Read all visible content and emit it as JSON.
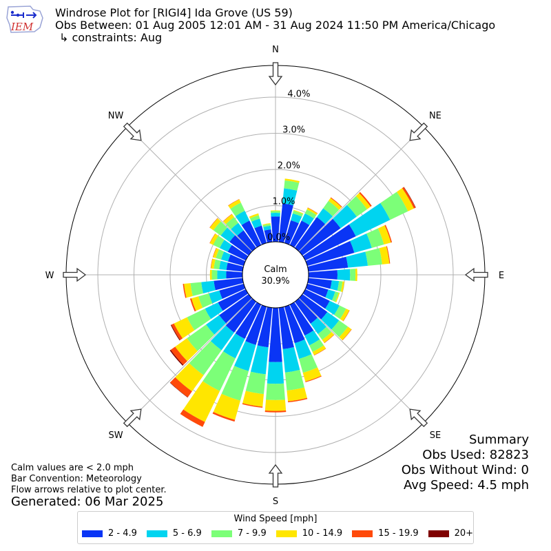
{
  "header": {
    "title": "Windrose Plot for [RIGI4] Ida Grove (US 59)",
    "period": "Obs Between: 01 Aug 2005 12:01 AM - 31 Aug 2024 11:50 PM America/Chicago",
    "constraints": "↳ constraints: Aug",
    "logo_text": "IEM"
  },
  "calm": {
    "label": "Calm",
    "value": "30.9%"
  },
  "notes": {
    "line1": "Calm values are < 2.0 mph",
    "line2": "Bar Convention: Meteorology",
    "line3": "Flow arrows relative to plot center.",
    "generated": "Generated: 06 Mar 2025"
  },
  "summary": {
    "title": "Summary",
    "obs_used": "Obs Used: 82823",
    "obs_without_wind": "Obs Without Wind: 0",
    "avg_speed": "Avg Speed: 4.5 mph"
  },
  "colors": {
    "speed_bins": [
      "#0a35f5",
      "#00d4f0",
      "#7cff78",
      "#ffe600",
      "#ff4a0a",
      "#7f0000"
    ],
    "grid": "#b0b0b0",
    "outer_ring": "#000000"
  },
  "chart_data": {
    "type": "windrose",
    "units": "mph",
    "directions": [
      "N",
      "NE",
      "E",
      "SE",
      "S",
      "SW",
      "W",
      "NW"
    ],
    "radial_ticks": [
      "0.0%",
      "1.0%",
      "2.0%",
      "3.0%",
      "4.0%"
    ],
    "rmax_percent": 5.0,
    "calm_percent": 30.9,
    "legend_title": "Wind Speed [mph]",
    "speed_bins": [
      "2 - 4.9",
      "5 - 6.9",
      "7 - 9.9",
      "10 - 14.9",
      "15 - 19.9",
      "20+"
    ],
    "sectors": [
      {
        "dir": 0,
        "values": [
          0.7,
          0.1,
          0.05,
          0.02,
          0.0,
          0.0
        ]
      },
      {
        "dir": 10,
        "values": [
          1.07,
          0.42,
          0.22,
          0.05,
          0.0,
          0.0
        ]
      },
      {
        "dir": 20,
        "values": [
          0.65,
          0.2,
          0.08,
          0.02,
          0.0,
          0.0
        ]
      },
      {
        "dir": 30,
        "values": [
          0.75,
          0.22,
          0.12,
          0.05,
          0.01,
          0.0
        ]
      },
      {
        "dir": 40,
        "values": [
          1.05,
          0.3,
          0.25,
          0.1,
          0.02,
          0.0
        ]
      },
      {
        "dir": 50,
        "values": [
          1.3,
          0.55,
          0.35,
          0.12,
          0.04,
          0.0
        ]
      },
      {
        "dir": 60,
        "values": [
          1.55,
          1.05,
          0.55,
          0.18,
          0.05,
          0.01
        ]
      },
      {
        "dir": 70,
        "values": [
          1.35,
          0.5,
          0.35,
          0.2,
          0.03,
          0.0
        ]
      },
      {
        "dir": 80,
        "values": [
          1.1,
          0.55,
          0.4,
          0.2,
          0.02,
          0.0
        ]
      },
      {
        "dir": 90,
        "values": [
          0.8,
          0.35,
          0.15,
          0.05,
          0.0,
          0.0
        ]
      },
      {
        "dir": 100,
        "values": [
          0.65,
          0.2,
          0.1,
          0.05,
          0.0,
          0.0
        ]
      },
      {
        "dir": 110,
        "values": [
          0.6,
          0.2,
          0.1,
          0.03,
          0.0,
          0.0
        ]
      },
      {
        "dir": 120,
        "values": [
          0.75,
          0.3,
          0.2,
          0.1,
          0.01,
          0.0
        ]
      },
      {
        "dir": 130,
        "values": [
          0.85,
          0.4,
          0.3,
          0.12,
          0.01,
          0.0
        ]
      },
      {
        "dir": 140,
        "values": [
          0.75,
          0.35,
          0.2,
          0.1,
          0.01,
          0.0
        ]
      },
      {
        "dir": 150,
        "values": [
          0.95,
          0.3,
          0.2,
          0.1,
          0.01,
          0.0
        ]
      },
      {
        "dir": 160,
        "values": [
          1.05,
          0.45,
          0.4,
          0.25,
          0.02,
          0.0
        ]
      },
      {
        "dir": 170,
        "values": [
          1.15,
          0.65,
          0.5,
          0.3,
          0.03,
          0.0
        ]
      },
      {
        "dir": 180,
        "values": [
          1.5,
          0.6,
          0.45,
          0.3,
          0.04,
          0.0
        ]
      },
      {
        "dir": 190,
        "values": [
          1.1,
          0.75,
          0.55,
          0.35,
          0.03,
          0.0
        ]
      },
      {
        "dir": 200,
        "values": [
          1.1,
          0.75,
          0.85,
          0.55,
          0.05,
          0.0
        ]
      },
      {
        "dir": 210,
        "values": [
          1.05,
          0.6,
          1.0,
          0.95,
          0.15,
          0.0
        ]
      },
      {
        "dir": 220,
        "values": [
          1.05,
          0.6,
          0.85,
          0.55,
          0.2,
          0.01
        ]
      },
      {
        "dir": 230,
        "values": [
          1.0,
          0.45,
          0.65,
          0.4,
          0.15,
          0.03
        ]
      },
      {
        "dir": 240,
        "values": [
          0.85,
          0.4,
          0.55,
          0.4,
          0.08,
          0.02
        ]
      },
      {
        "dir": 250,
        "values": [
          0.7,
          0.3,
          0.3,
          0.2,
          0.04,
          0.0
        ]
      },
      {
        "dir": 260,
        "values": [
          0.8,
          0.35,
          0.3,
          0.18,
          0.03,
          0.0
        ]
      },
      {
        "dir": 270,
        "values": [
          0.45,
          0.25,
          0.15,
          0.05,
          0.0,
          0.0
        ]
      },
      {
        "dir": 280,
        "values": [
          0.45,
          0.2,
          0.15,
          0.08,
          0.01,
          0.0
        ]
      },
      {
        "dir": 290,
        "values": [
          0.45,
          0.2,
          0.15,
          0.08,
          0.01,
          0.0
        ]
      },
      {
        "dir": 300,
        "values": [
          0.55,
          0.25,
          0.2,
          0.1,
          0.01,
          0.0
        ]
      },
      {
        "dir": 310,
        "values": [
          0.65,
          0.3,
          0.25,
          0.12,
          0.01,
          0.0
        ]
      },
      {
        "dir": 320,
        "values": [
          0.6,
          0.25,
          0.2,
          0.1,
          0.01,
          0.0
        ]
      },
      {
        "dir": 330,
        "values": [
          0.75,
          0.3,
          0.25,
          0.1,
          0.01,
          0.0
        ]
      },
      {
        "dir": 340,
        "values": [
          0.5,
          0.2,
          0.1,
          0.05,
          0.0,
          0.0
        ]
      },
      {
        "dir": 350,
        "values": [
          0.35,
          0.1,
          0.05,
          0.02,
          0.0,
          0.0
        ]
      }
    ]
  }
}
